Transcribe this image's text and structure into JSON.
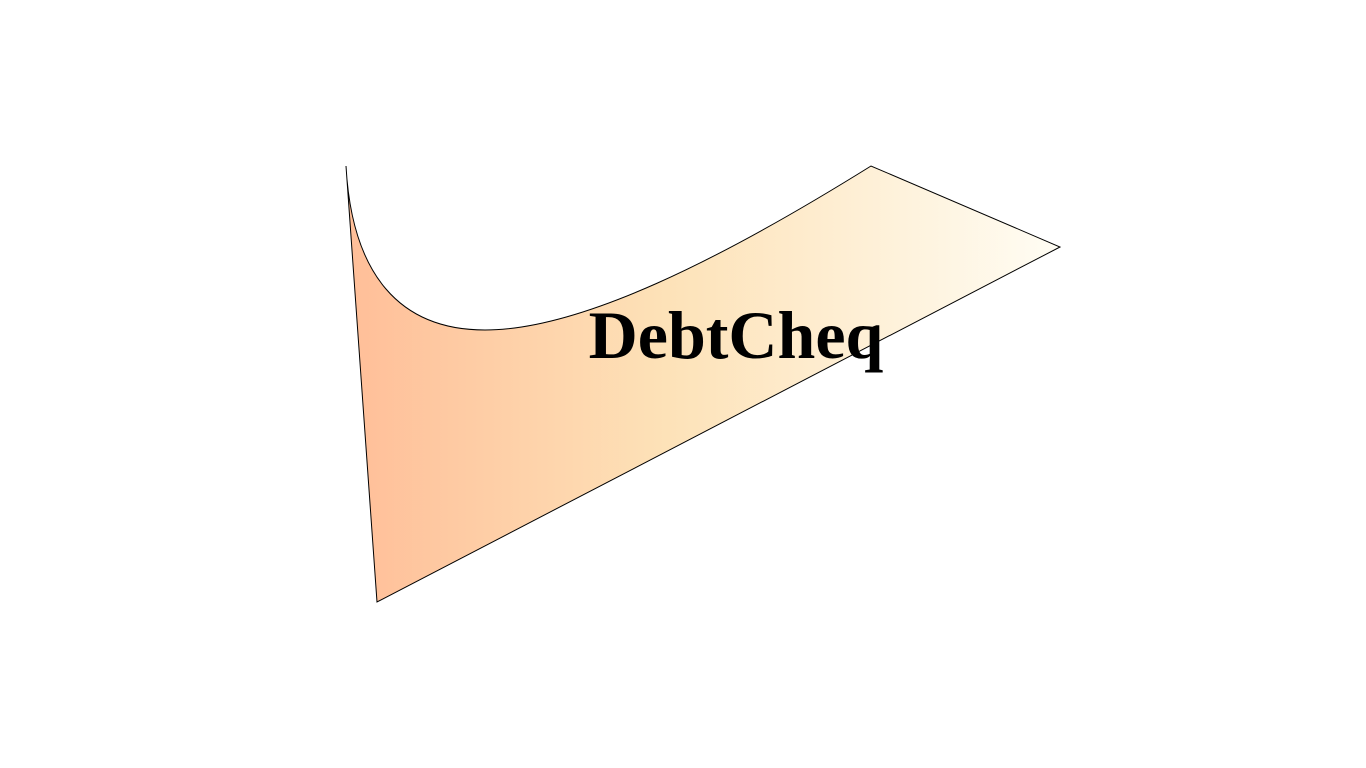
{
  "brand": {
    "name": "DebtCheq"
  },
  "colors": {
    "gradient_start": "#ffbe98",
    "gradient_mid": "#fde2b8",
    "gradient_end": "#fffdf4",
    "outline": "#000000",
    "text": "#000000",
    "background": "#ffffff"
  },
  "icons": {
    "logo_shape": "checkmark-swoosh-icon"
  }
}
